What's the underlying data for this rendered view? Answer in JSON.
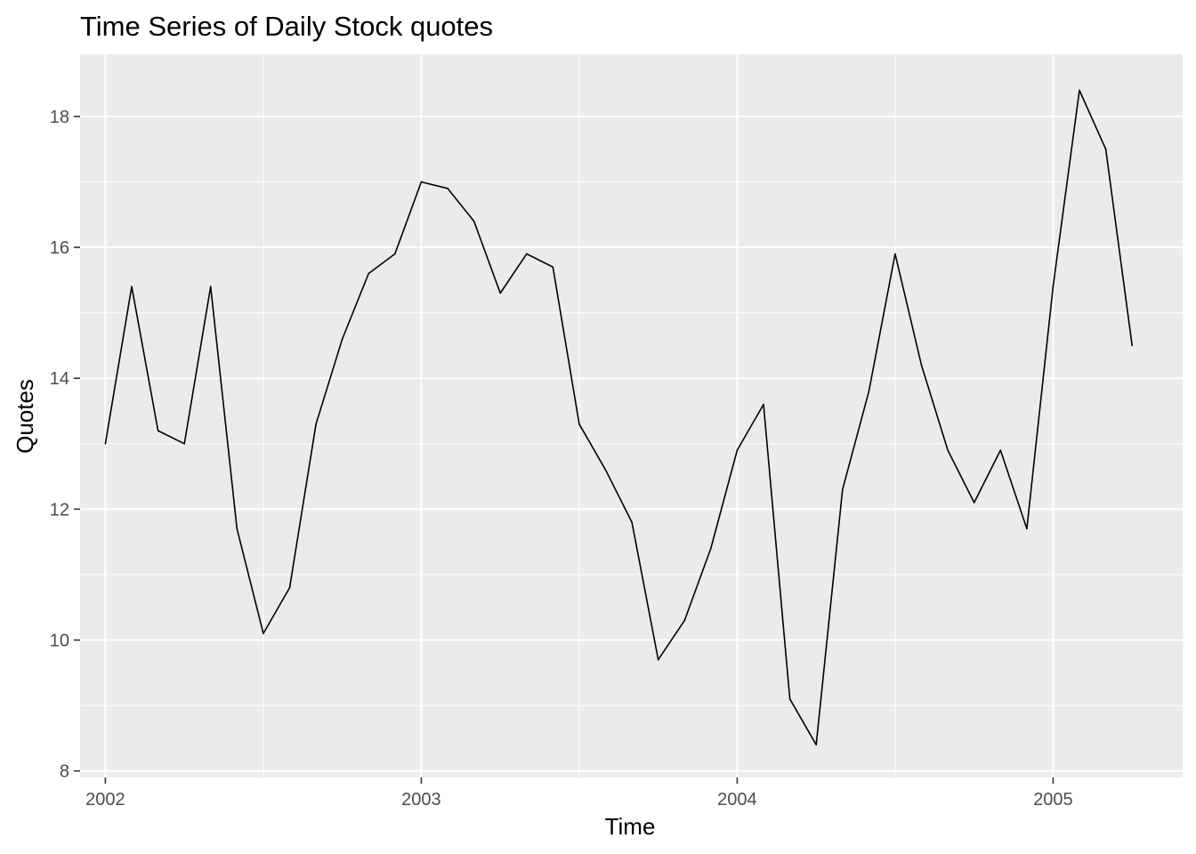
{
  "chart_data": {
    "type": "line",
    "title": "Time Series of Daily Stock quotes",
    "xlabel": "Time",
    "ylabel": "Quotes",
    "xlim": [
      2001.92,
      2005.41
    ],
    "ylim": [
      7.9,
      18.95
    ],
    "x_ticks": [
      2002,
      2003,
      2004,
      2005
    ],
    "x_tick_labels": [
      "2002",
      "2003",
      "2004",
      "2005"
    ],
    "y_ticks": [
      8,
      10,
      12,
      14,
      16,
      18
    ],
    "y_tick_labels": [
      "8",
      "10",
      "12",
      "14",
      "16",
      "18"
    ],
    "grid": true,
    "legend": "none",
    "colors": {
      "panel": "#ebebeb",
      "grid": "#ffffff",
      "line": "#000000",
      "tick_text": "#4d4d4d"
    },
    "series": [
      {
        "start": 2002,
        "frequency": 12,
        "values": [
          13.0,
          15.4,
          13.2,
          13.0,
          15.4,
          11.7,
          10.1,
          10.8,
          13.3,
          14.6,
          15.6,
          15.9,
          17.0,
          16.9,
          16.4,
          15.3,
          15.9,
          15.7,
          13.3,
          12.6,
          11.8,
          9.7,
          10.3,
          11.4,
          12.9,
          13.6,
          9.1,
          8.4,
          12.3,
          13.8,
          15.9,
          14.2,
          12.9,
          12.1,
          12.9,
          11.7,
          15.4,
          18.4,
          17.5,
          14.5
        ]
      }
    ]
  }
}
